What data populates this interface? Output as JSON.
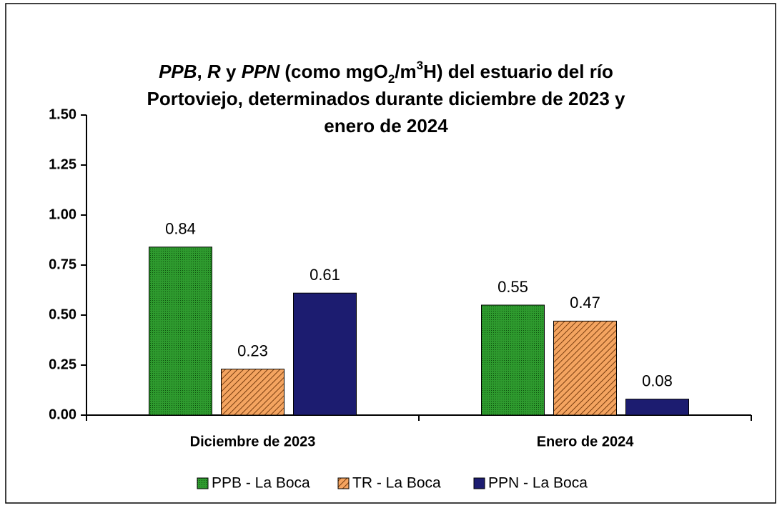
{
  "chart_data": {
    "type": "bar",
    "title": [
      [
        {
          "text": "PPB",
          "style": "italic"
        },
        {
          "text": ", "
        },
        {
          "text": "R",
          "style": "italic"
        },
        {
          "text": " y "
        },
        {
          "text": "PPN",
          "style": "italic"
        },
        {
          "text": " (como mgO"
        },
        {
          "text": "2",
          "style": "sub"
        },
        {
          "text": "/m"
        },
        {
          "text": "3",
          "style": "sup"
        },
        {
          "text": "H) del estuario del río"
        }
      ],
      [
        {
          "text": "Portoviejo, determinados durante diciembre de 2023 y"
        }
      ],
      [
        {
          "text": "enero de 2024"
        }
      ]
    ],
    "categories": [
      "Diciembre de 2023",
      "Enero de 2024"
    ],
    "series": [
      {
        "name": "PPB - La Boca",
        "color": "#2e9a2e",
        "pattern": "dots",
        "values": [
          0.84,
          0.55
        ]
      },
      {
        "name": "TR - La Boca",
        "color": "#f4a460",
        "pattern": "hatch",
        "values": [
          0.23,
          0.47
        ]
      },
      {
        "name": "PPN - La Boca",
        "color": "#1c1c70",
        "values": [
          0.61,
          0.08
        ]
      }
    ],
    "ylim": [
      0,
      1.5
    ],
    "yticks": [
      {
        "value": 0,
        "label": "0.00"
      },
      {
        "value": 0.25,
        "label": "0.25"
      },
      {
        "value": 0.5,
        "label": "0.50"
      },
      {
        "value": 0.75,
        "label": "0.75"
      },
      {
        "value": 1,
        "label": "1.00"
      },
      {
        "value": 1.25,
        "label": "1.25"
      },
      {
        "value": 1.5,
        "label": "1.50"
      }
    ],
    "grid": false,
    "legend": "bottom"
  }
}
